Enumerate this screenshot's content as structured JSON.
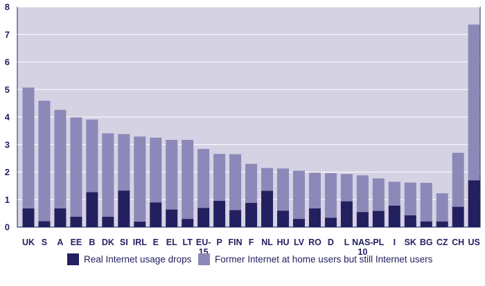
{
  "chart_data": {
    "type": "bar",
    "stacked": true,
    "categories": [
      "UK",
      "S",
      "A",
      "EE",
      "B",
      "DK",
      "SI",
      "IRL",
      "E",
      "EL",
      "LT",
      "EU-15",
      "P",
      "FIN",
      "F",
      "NL",
      "HU",
      "LV",
      "RO",
      "D",
      "L",
      "NAS-10",
      "PL",
      "I",
      "SK",
      "BG",
      "CZ",
      "CH",
      "US"
    ],
    "series": [
      {
        "name": "Real Internet usage drops",
        "color": "#232060",
        "values": [
          0.68,
          0.22,
          0.68,
          0.38,
          1.27,
          0.38,
          1.33,
          0.2,
          0.9,
          0.64,
          0.3,
          0.7,
          0.96,
          0.62,
          0.88,
          1.32,
          0.6,
          0.3,
          0.68,
          0.34,
          0.94,
          0.55,
          0.59,
          0.78,
          0.43,
          0.21,
          0.21,
          0.74,
          1.7
        ]
      },
      {
        "name": "Former Internet at home users but still Internet users",
        "color": "#8c88b8",
        "values": [
          4.39,
          4.37,
          3.58,
          3.61,
          2.64,
          3.03,
          2.05,
          3.09,
          2.35,
          2.53,
          2.87,
          2.14,
          1.7,
          2.03,
          1.42,
          0.83,
          1.53,
          1.75,
          1.3,
          1.62,
          0.99,
          1.33,
          1.18,
          0.87,
          1.19,
          1.4,
          1.02,
          1.96,
          5.66
        ]
      }
    ],
    "ylim": [
      0,
      8
    ],
    "yticks": [
      0,
      1,
      2,
      3,
      4,
      5,
      6,
      7,
      8
    ],
    "category_labels": [
      [
        "UK"
      ],
      [
        "S"
      ],
      [
        "A"
      ],
      [
        "EE"
      ],
      [
        "B"
      ],
      [
        "DK"
      ],
      [
        "SI"
      ],
      [
        "IRL"
      ],
      [
        "E"
      ],
      [
        "EL"
      ],
      [
        "LT"
      ],
      [
        "EU-",
        "15"
      ],
      [
        "P"
      ],
      [
        "FIN"
      ],
      [
        "F"
      ],
      [
        "NL"
      ],
      [
        "HU"
      ],
      [
        "LV"
      ],
      [
        "RO"
      ],
      [
        "D"
      ],
      [
        "L"
      ],
      [
        "NAS-",
        "10"
      ],
      [
        "PL"
      ],
      [
        "I"
      ],
      [
        "SK"
      ],
      [
        "BG"
      ],
      [
        "CZ"
      ],
      [
        "CH"
      ],
      [
        "US"
      ]
    ],
    "grid": true,
    "legend_position": "bottom",
    "plot_background": "#d5d2e4"
  }
}
